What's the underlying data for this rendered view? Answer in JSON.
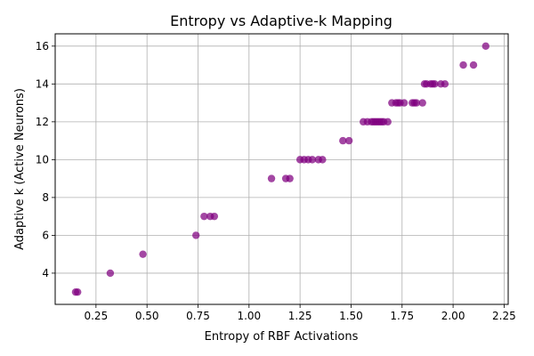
{
  "chart_data": {
    "type": "scatter",
    "title": "Entropy vs Adaptive-k Mapping",
    "xlabel": "Entropy of RBF Activations",
    "ylabel": "Adaptive k (Active Neurons)",
    "xlim": [
      0.05,
      2.27
    ],
    "ylim": [
      2.35,
      16.65
    ],
    "xticks": [
      0.25,
      0.5,
      0.75,
      1.0,
      1.25,
      1.5,
      1.75,
      2.0,
      2.25
    ],
    "xtick_labels": [
      "0.25",
      "0.50",
      "0.75",
      "1.00",
      "1.25",
      "1.50",
      "1.75",
      "2.00",
      "2.25"
    ],
    "yticks": [
      4,
      6,
      8,
      10,
      12,
      14,
      16
    ],
    "ytick_labels": [
      "4",
      "6",
      "8",
      "10",
      "12",
      "14",
      "16"
    ],
    "grid": true,
    "color": "#800080",
    "points": [
      {
        "x": 0.15,
        "y": 3
      },
      {
        "x": 0.16,
        "y": 3
      },
      {
        "x": 0.32,
        "y": 4
      },
      {
        "x": 0.48,
        "y": 5
      },
      {
        "x": 0.74,
        "y": 6
      },
      {
        "x": 0.78,
        "y": 7
      },
      {
        "x": 0.81,
        "y": 7
      },
      {
        "x": 0.83,
        "y": 7
      },
      {
        "x": 1.11,
        "y": 9
      },
      {
        "x": 1.18,
        "y": 9
      },
      {
        "x": 1.2,
        "y": 9
      },
      {
        "x": 1.25,
        "y": 10
      },
      {
        "x": 1.27,
        "y": 10
      },
      {
        "x": 1.29,
        "y": 10
      },
      {
        "x": 1.31,
        "y": 10
      },
      {
        "x": 1.34,
        "y": 10
      },
      {
        "x": 1.36,
        "y": 10
      },
      {
        "x": 1.46,
        "y": 11
      },
      {
        "x": 1.49,
        "y": 11
      },
      {
        "x": 1.56,
        "y": 12
      },
      {
        "x": 1.58,
        "y": 12
      },
      {
        "x": 1.6,
        "y": 12
      },
      {
        "x": 1.61,
        "y": 12
      },
      {
        "x": 1.62,
        "y": 12
      },
      {
        "x": 1.63,
        "y": 12
      },
      {
        "x": 1.64,
        "y": 12
      },
      {
        "x": 1.65,
        "y": 12
      },
      {
        "x": 1.66,
        "y": 12
      },
      {
        "x": 1.68,
        "y": 12
      },
      {
        "x": 1.7,
        "y": 13
      },
      {
        "x": 1.72,
        "y": 13
      },
      {
        "x": 1.73,
        "y": 13
      },
      {
        "x": 1.74,
        "y": 13
      },
      {
        "x": 1.76,
        "y": 13
      },
      {
        "x": 1.8,
        "y": 13
      },
      {
        "x": 1.81,
        "y": 13
      },
      {
        "x": 1.82,
        "y": 13
      },
      {
        "x": 1.85,
        "y": 13
      },
      {
        "x": 1.86,
        "y": 14
      },
      {
        "x": 1.87,
        "y": 14
      },
      {
        "x": 1.89,
        "y": 14
      },
      {
        "x": 1.9,
        "y": 14
      },
      {
        "x": 1.91,
        "y": 14
      },
      {
        "x": 1.94,
        "y": 14
      },
      {
        "x": 1.96,
        "y": 14
      },
      {
        "x": 2.05,
        "y": 15
      },
      {
        "x": 2.1,
        "y": 15
      },
      {
        "x": 2.16,
        "y": 16
      }
    ]
  }
}
